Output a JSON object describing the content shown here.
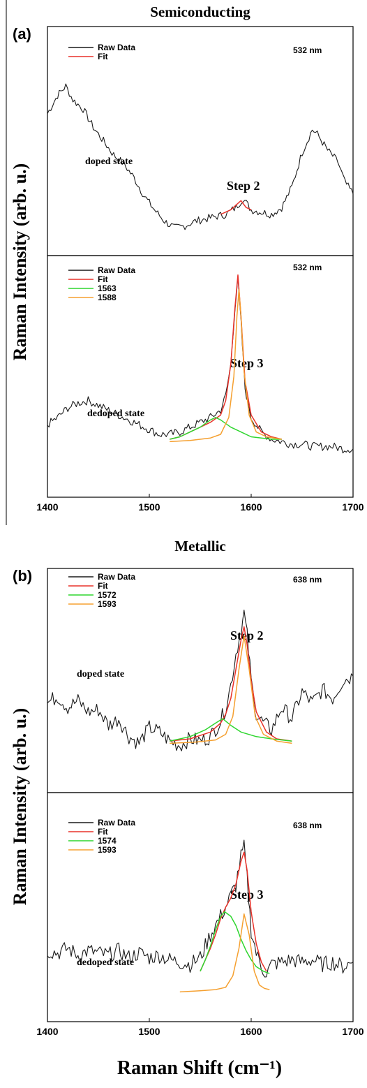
{
  "figure": {
    "ylabel_top": "Raman Intensity (arb. u.)",
    "ylabel_bottom": "Raman Intensity (arb. u.)",
    "xlabel": "Raman Shift (cm⁻¹)"
  },
  "colors": {
    "raw": "#1a1a1a",
    "fit": "#e8322a",
    "comp1": "#2fd62f",
    "comp2": "#f5a030",
    "axis": "#000000"
  },
  "chart_data": [
    {
      "type": "line",
      "section_title": "Semiconducting",
      "panel_label": "(a)",
      "wavelength": "532 nm",
      "step_label": "Step 2",
      "state_label": "doped state",
      "xlim": [
        1400,
        1700
      ],
      "show_xticks": false,
      "series": [
        {
          "name": "Raw Data",
          "x": [
            1400,
            1410,
            1418,
            1425,
            1435,
            1445,
            1455,
            1465,
            1475,
            1485,
            1495,
            1505,
            1515,
            1525,
            1535,
            1545,
            1555,
            1565,
            1575,
            1585,
            1592,
            1600,
            1610,
            1620,
            1630,
            1640,
            1650,
            1660,
            1665,
            1675,
            1685,
            1692,
            1700
          ],
          "y": [
            0.62,
            0.7,
            0.74,
            0.68,
            0.64,
            0.56,
            0.5,
            0.44,
            0.4,
            0.34,
            0.26,
            0.2,
            0.15,
            0.12,
            0.13,
            0.15,
            0.16,
            0.17,
            0.18,
            0.21,
            0.25,
            0.2,
            0.19,
            0.18,
            0.21,
            0.3,
            0.45,
            0.55,
            0.53,
            0.46,
            0.41,
            0.32,
            0.27
          ]
        },
        {
          "name": "Fit",
          "x": [
            1570,
            1575,
            1580,
            1585,
            1590,
            1595,
            1600
          ],
          "y": [
            0.18,
            0.19,
            0.2,
            0.22,
            0.24,
            0.21,
            0.2
          ]
        }
      ]
    },
    {
      "type": "line",
      "panel_label": "",
      "wavelength": "532 nm",
      "step_label": "Step 3",
      "state_label": "dedoped state",
      "xlim": [
        1400,
        1700
      ],
      "show_xticks": true,
      "xticks": [
        1400,
        1500,
        1600,
        1700
      ],
      "series": [
        {
          "name": "Raw Data",
          "x": [
            1400,
            1410,
            1420,
            1430,
            1440,
            1450,
            1460,
            1470,
            1480,
            1490,
            1500,
            1510,
            1520,
            1530,
            1540,
            1550,
            1560,
            1570,
            1575,
            1580,
            1584,
            1587,
            1590,
            1594,
            1600,
            1610,
            1620,
            1630,
            1640,
            1650,
            1660,
            1670,
            1680,
            1690,
            1700
          ],
          "y": [
            0.3,
            0.33,
            0.37,
            0.39,
            0.4,
            0.38,
            0.36,
            0.34,
            0.32,
            0.3,
            0.28,
            0.26,
            0.26,
            0.27,
            0.29,
            0.31,
            0.33,
            0.36,
            0.42,
            0.55,
            0.78,
            0.9,
            0.72,
            0.45,
            0.33,
            0.27,
            0.24,
            0.23,
            0.22,
            0.22,
            0.21,
            0.21,
            0.21,
            0.2,
            0.2
          ]
        },
        {
          "name": "Fit",
          "x": [
            1520,
            1530,
            1540,
            1550,
            1560,
            1570,
            1575,
            1580,
            1584,
            1587,
            1590,
            1594,
            1600,
            1610,
            1620,
            1630
          ],
          "y": [
            0.24,
            0.25,
            0.27,
            0.29,
            0.31,
            0.34,
            0.4,
            0.55,
            0.78,
            0.92,
            0.75,
            0.48,
            0.34,
            0.27,
            0.25,
            0.24
          ]
        },
        {
          "name": "1563",
          "x": [
            1520,
            1530,
            1540,
            1550,
            1560,
            1565,
            1570,
            1580,
            1590,
            1600,
            1610,
            1620,
            1630
          ],
          "y": [
            0.24,
            0.25,
            0.27,
            0.29,
            0.32,
            0.33,
            0.32,
            0.29,
            0.27,
            0.25,
            0.245,
            0.24,
            0.24
          ]
        },
        {
          "name": "1588",
          "x": [
            1520,
            1540,
            1560,
            1570,
            1578,
            1583,
            1586,
            1588,
            1590,
            1593,
            1598,
            1605,
            1615,
            1630
          ],
          "y": [
            0.23,
            0.235,
            0.245,
            0.26,
            0.33,
            0.5,
            0.75,
            0.86,
            0.75,
            0.52,
            0.34,
            0.27,
            0.25,
            0.24
          ]
        }
      ]
    },
    {
      "type": "line",
      "section_title": "Metallic",
      "panel_label": "(b)",
      "wavelength": "638 nm",
      "step_label": "Step 2",
      "state_label": "doped state",
      "xlim": [
        1400,
        1700
      ],
      "show_xticks": false,
      "series": [
        {
          "name": "Raw Data",
          "x": [
            1400,
            1410,
            1420,
            1430,
            1440,
            1450,
            1460,
            1470,
            1480,
            1490,
            1500,
            1510,
            1520,
            1530,
            1540,
            1550,
            1560,
            1570,
            1575,
            1580,
            1585,
            1590,
            1593,
            1596,
            1600,
            1605,
            1610,
            1620,
            1630,
            1640,
            1650,
            1660,
            1670,
            1680,
            1690,
            1700
          ],
          "y": [
            0.4,
            0.43,
            0.38,
            0.41,
            0.36,
            0.37,
            0.3,
            0.33,
            0.25,
            0.22,
            0.29,
            0.27,
            0.23,
            0.21,
            0.24,
            0.23,
            0.25,
            0.32,
            0.38,
            0.48,
            0.62,
            0.72,
            0.8,
            0.7,
            0.5,
            0.35,
            0.32,
            0.28,
            0.38,
            0.33,
            0.45,
            0.4,
            0.46,
            0.42,
            0.5,
            0.52
          ]
        },
        {
          "name": "Fit",
          "x": [
            1520,
            1540,
            1560,
            1570,
            1575,
            1580,
            1585,
            1590,
            1593,
            1596,
            1600,
            1605,
            1615,
            1625,
            1640
          ],
          "y": [
            0.23,
            0.24,
            0.27,
            0.31,
            0.35,
            0.42,
            0.55,
            0.68,
            0.74,
            0.66,
            0.5,
            0.36,
            0.27,
            0.24,
            0.23
          ]
        },
        {
          "name": "1572",
          "x": [
            1520,
            1540,
            1555,
            1565,
            1572,
            1580,
            1590,
            1605,
            1620,
            1640
          ],
          "y": [
            0.23,
            0.25,
            0.28,
            0.31,
            0.33,
            0.3,
            0.27,
            0.25,
            0.24,
            0.23
          ]
        },
        {
          "name": "1593",
          "x": [
            1520,
            1545,
            1565,
            1575,
            1582,
            1588,
            1593,
            1598,
            1604,
            1612,
            1625,
            1640
          ],
          "y": [
            0.22,
            0.225,
            0.235,
            0.26,
            0.34,
            0.55,
            0.7,
            0.55,
            0.34,
            0.26,
            0.23,
            0.22
          ]
        }
      ]
    },
    {
      "type": "line",
      "panel_label": "",
      "wavelength": "638 nm",
      "step_label": "Step 3",
      "state_label": "dedoped state",
      "xlim": [
        1400,
        1700
      ],
      "show_xticks": true,
      "xticks": [
        1400,
        1500,
        1600,
        1700
      ],
      "series": [
        {
          "name": "Raw Data",
          "x": [
            1400,
            1410,
            1420,
            1430,
            1440,
            1450,
            1460,
            1470,
            1480,
            1490,
            1500,
            1510,
            1520,
            1530,
            1540,
            1550,
            1560,
            1570,
            1575,
            1580,
            1585,
            1590,
            1593,
            1596,
            1600,
            1605,
            1610,
            1615,
            1620,
            1630,
            1640,
            1650,
            1660,
            1670,
            1680,
            1690,
            1700
          ],
          "y": [
            0.31,
            0.3,
            0.32,
            0.29,
            0.31,
            0.3,
            0.29,
            0.31,
            0.28,
            0.3,
            0.28,
            0.29,
            0.27,
            0.26,
            0.25,
            0.28,
            0.38,
            0.46,
            0.5,
            0.55,
            0.6,
            0.72,
            0.76,
            0.62,
            0.4,
            0.3,
            0.24,
            0.21,
            0.25,
            0.26,
            0.27,
            0.26,
            0.27,
            0.25,
            0.26,
            0.24,
            0.26
          ]
        },
        {
          "name": "Fit",
          "x": [
            1550,
            1560,
            1565,
            1570,
            1575,
            1580,
            1585,
            1590,
            1593,
            1596,
            1600,
            1605,
            1610,
            1615
          ],
          "y": [
            0.22,
            0.32,
            0.38,
            0.45,
            0.5,
            0.54,
            0.6,
            0.7,
            0.74,
            0.66,
            0.48,
            0.34,
            0.26,
            0.22
          ]
        },
        {
          "name": "1574",
          "x": [
            1550,
            1555,
            1560,
            1565,
            1570,
            1574,
            1580,
            1585,
            1590,
            1595,
            1600,
            1605,
            1612,
            1618
          ],
          "y": [
            0.22,
            0.27,
            0.33,
            0.4,
            0.46,
            0.48,
            0.46,
            0.42,
            0.36,
            0.31,
            0.27,
            0.24,
            0.22,
            0.21
          ]
        },
        {
          "name": "1593",
          "x": [
            1530,
            1550,
            1565,
            1575,
            1582,
            1588,
            1593,
            1598,
            1603,
            1608,
            1613,
            1618
          ],
          "y": [
            0.13,
            0.135,
            0.14,
            0.15,
            0.2,
            0.32,
            0.47,
            0.38,
            0.22,
            0.16,
            0.145,
            0.14
          ]
        }
      ]
    }
  ]
}
